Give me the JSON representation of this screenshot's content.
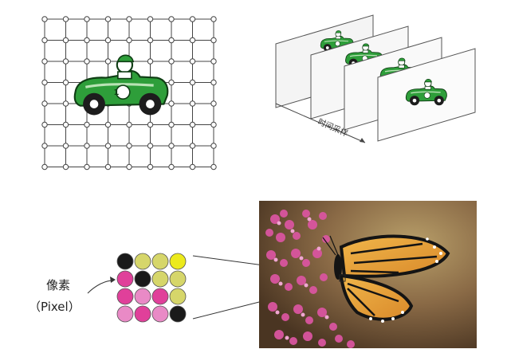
{
  "sampling_label": "时间采样",
  "pixel_label_cn": "像素",
  "pixel_label_en": "（Pixel）",
  "car_number": "1",
  "colors": {
    "car_green": "#2e9e3a",
    "car_green_light": "#b9e3b5",
    "grid_line": "#444444",
    "grid_dot": "#ffffff",
    "pixel_black": "#1a1a1a",
    "pixel_olive": "#d6d66a",
    "pixel_yellow": "#ecea1c",
    "pixel_magenta": "#e0409a",
    "pixel_pink": "#e98ac6"
  },
  "pixel_grid": [
    [
      "pixel_black",
      "pixel_olive",
      "pixel_olive",
      "pixel_yellow"
    ],
    [
      "pixel_magenta",
      "pixel_black",
      "pixel_olive",
      "pixel_olive"
    ],
    [
      "pixel_magenta",
      "pixel_pink",
      "pixel_magenta",
      "pixel_olive"
    ],
    [
      "pixel_pink",
      "pixel_magenta",
      "pixel_pink",
      "pixel_black"
    ]
  ]
}
